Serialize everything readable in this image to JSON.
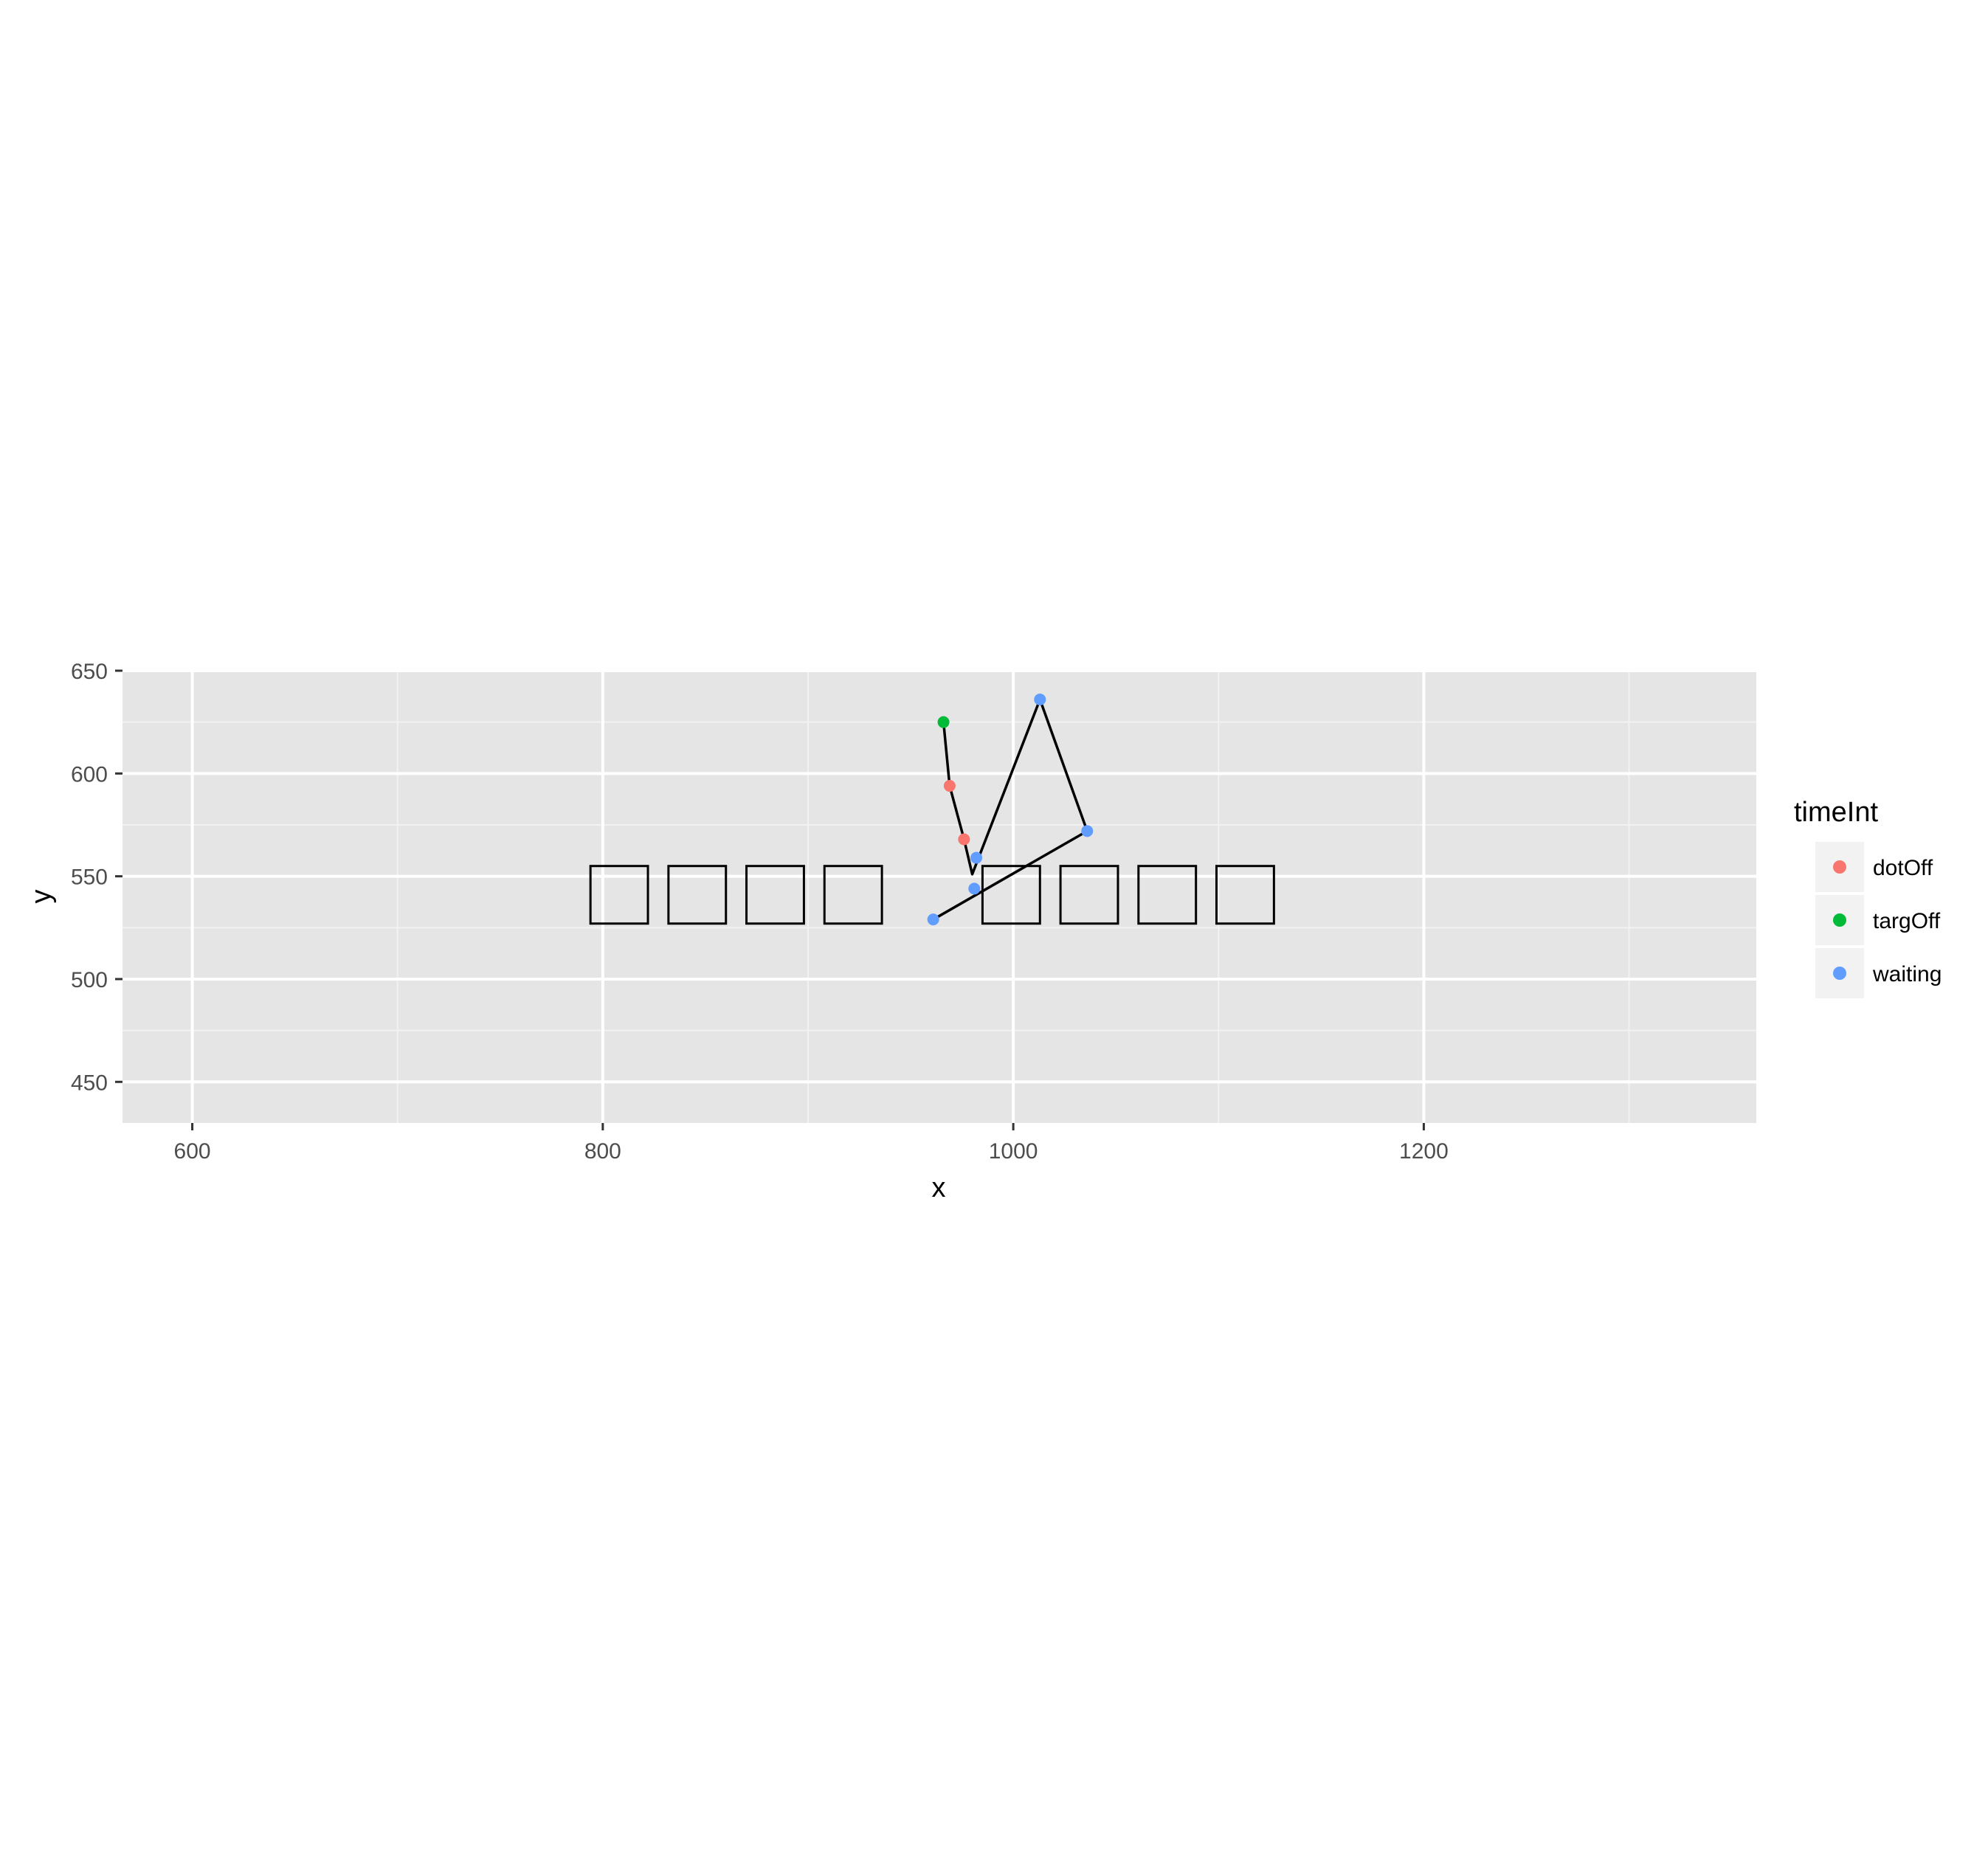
{
  "chart_data": {
    "type": "scatter",
    "xlabel": "x",
    "ylabel": "y",
    "xlim": [
      566,
      1362
    ],
    "ylim": [
      430,
      650
    ],
    "x_ticks": [
      600,
      800,
      1000,
      1200
    ],
    "x_minor_ticks": [
      700,
      900,
      1100,
      1300
    ],
    "y_ticks": [
      450,
      500,
      550,
      600,
      650
    ],
    "y_minor_ticks": [
      475,
      525,
      575,
      625
    ],
    "grid": true,
    "background": "#e5e5e5",
    "legend": {
      "title": "timeInt",
      "placement": "right",
      "entries": [
        {
          "label": "dotOff",
          "color": "#f8766d"
        },
        {
          "label": "targOff",
          "color": "#00ba38"
        },
        {
          "label": "waiting",
          "color": "#619cff"
        }
      ]
    },
    "points": [
      {
        "x": 961,
        "y": 529,
        "group": "waiting"
      },
      {
        "x": 981,
        "y": 544,
        "group": "waiting"
      },
      {
        "x": 982,
        "y": 559,
        "group": "waiting"
      },
      {
        "x": 1036,
        "y": 572,
        "group": "waiting"
      },
      {
        "x": 1013,
        "y": 636,
        "group": "waiting"
      },
      {
        "x": 976,
        "y": 568,
        "group": "dotOff"
      },
      {
        "x": 969,
        "y": 594,
        "group": "dotOff"
      },
      {
        "x": 966,
        "y": 625,
        "group": "targOff"
      }
    ],
    "path": [
      {
        "x": 961,
        "y": 529
      },
      {
        "x": 1036,
        "y": 572
      },
      {
        "x": 1013,
        "y": 636
      },
      {
        "x": 980,
        "y": 551
      },
      {
        "x": 976,
        "y": 568
      },
      {
        "x": 969,
        "y": 594
      },
      {
        "x": 966,
        "y": 625
      }
    ],
    "boxes": [
      {
        "xmin": 794,
        "xmax": 822,
        "ymin": 527,
        "ymax": 555
      },
      {
        "xmin": 832,
        "xmax": 860,
        "ymin": 527,
        "ymax": 555
      },
      {
        "xmin": 870,
        "xmax": 898,
        "ymin": 527,
        "ymax": 555
      },
      {
        "xmin": 908,
        "xmax": 936,
        "ymin": 527,
        "ymax": 555
      },
      {
        "xmin": 985,
        "xmax": 1013,
        "ymin": 527,
        "ymax": 555
      },
      {
        "xmin": 1023,
        "xmax": 1051,
        "ymin": 527,
        "ymax": 555
      },
      {
        "xmin": 1061,
        "xmax": 1089,
        "ymin": 527,
        "ymax": 555
      },
      {
        "xmin": 1099,
        "xmax": 1127,
        "ymin": 527,
        "ymax": 555
      }
    ]
  }
}
